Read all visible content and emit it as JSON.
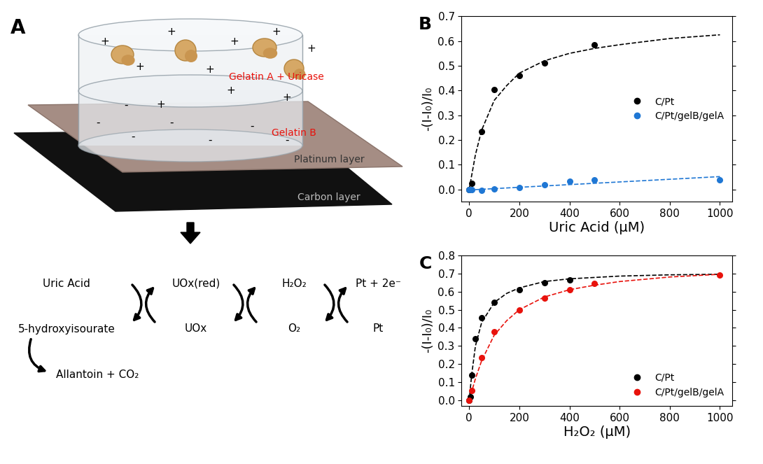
{
  "diagram": {
    "panel_label": "A",
    "layers": [
      "Platinum layer",
      "Carbon layer"
    ],
    "gel_labels": [
      "Gelatin A + Uricase",
      "Gelatin B"
    ],
    "charges": [
      "+",
      "-"
    ],
    "scheme": {
      "top": [
        "Uric Acid",
        "UOx(red)",
        "H₂O₂",
        "Pt + 2e⁻"
      ],
      "bottom": [
        "5-hydroxyisourate",
        "UOx",
        "O₂",
        "Pt"
      ],
      "product": "Allantoin + CO₂"
    }
  },
  "chart_data": [
    {
      "label": "B",
      "type": "scatter",
      "x_label": "Uric Acid (μM)",
      "y_label": "-(I-I₀)/I₀",
      "xlim": [
        -30,
        1050
      ],
      "ylim": [
        -0.05,
        0.7
      ],
      "xticks": [
        0,
        200,
        400,
        600,
        800,
        1000
      ],
      "yticks": [
        0.0,
        0.1,
        0.2,
        0.3,
        0.4,
        0.5,
        0.6,
        0.7
      ],
      "legend": "center right",
      "series": [
        {
          "name": "C/Pt",
          "color": "#000000",
          "marker": "o",
          "line_style": "dashed",
          "x": [
            0,
            10,
            50,
            100,
            200,
            300,
            500
          ],
          "values": [
            0.0,
            0.025,
            0.235,
            0.405,
            0.46,
            0.51,
            0.585
          ],
          "fit": {
            "x": [
              0,
              25,
              50,
              100,
              150,
              200,
              300,
              400,
              500,
              600,
              800,
              1000
            ],
            "values": [
              0.0,
              0.14,
              0.24,
              0.36,
              0.42,
              0.47,
              0.52,
              0.55,
              0.57,
              0.585,
              0.61,
              0.625
            ]
          }
        },
        {
          "name": "C/Pt/gelB/gelA",
          "color": "#1f77d4",
          "marker": "o",
          "line_style": "dashed",
          "x": [
            0,
            10,
            50,
            100,
            200,
            300,
            400,
            500,
            1000
          ],
          "values": [
            0.0,
            0.0,
            -0.005,
            0.003,
            0.008,
            0.02,
            0.033,
            0.04,
            0.04
          ],
          "fit": {
            "x": [
              0,
              1000
            ],
            "values": [
              -0.002,
              0.052
            ]
          }
        }
      ]
    },
    {
      "label": "C",
      "type": "scatter",
      "x_label": "H₂O₂ (μM)",
      "y_label": "-(I-I₀)/I₀",
      "xlim": [
        -30,
        1050
      ],
      "ylim": [
        -0.03,
        0.8
      ],
      "xticks": [
        0,
        200,
        400,
        600,
        800,
        1000
      ],
      "yticks": [
        0.0,
        0.1,
        0.2,
        0.3,
        0.4,
        0.5,
        0.6,
        0.7,
        0.8
      ],
      "legend": "lower right",
      "series": [
        {
          "name": "C/Pt",
          "color": "#000000",
          "marker": "o",
          "line_style": "dashed",
          "x": [
            0,
            5,
            10,
            25,
            50,
            100,
            200,
            300,
            400
          ],
          "values": [
            0.0,
            0.02,
            0.14,
            0.34,
            0.455,
            0.54,
            0.61,
            0.65,
            0.665
          ],
          "fit": {
            "x": [
              0,
              10,
              25,
              50,
              100,
              150,
              200,
              300,
              400,
              600,
              800,
              1000
            ],
            "values": [
              0.0,
              0.14,
              0.3,
              0.43,
              0.54,
              0.59,
              0.62,
              0.655,
              0.67,
              0.685,
              0.692,
              0.695
            ]
          }
        },
        {
          "name": "C/Pt/gelB/gelA",
          "color": "#e8120c",
          "marker": "o",
          "line_style": "dashed",
          "x": [
            0,
            10,
            50,
            100,
            200,
            300,
            400,
            500,
            1000
          ],
          "values": [
            0.0,
            0.055,
            0.235,
            0.38,
            0.5,
            0.565,
            0.61,
            0.645,
            0.69
          ],
          "fit": {
            "x": [
              0,
              25,
              50,
              100,
              150,
              200,
              300,
              400,
              500,
              600,
              800,
              1000
            ],
            "values": [
              0.0,
              0.12,
              0.22,
              0.36,
              0.44,
              0.5,
              0.57,
              0.61,
              0.635,
              0.655,
              0.68,
              0.695
            ]
          }
        }
      ]
    }
  ]
}
